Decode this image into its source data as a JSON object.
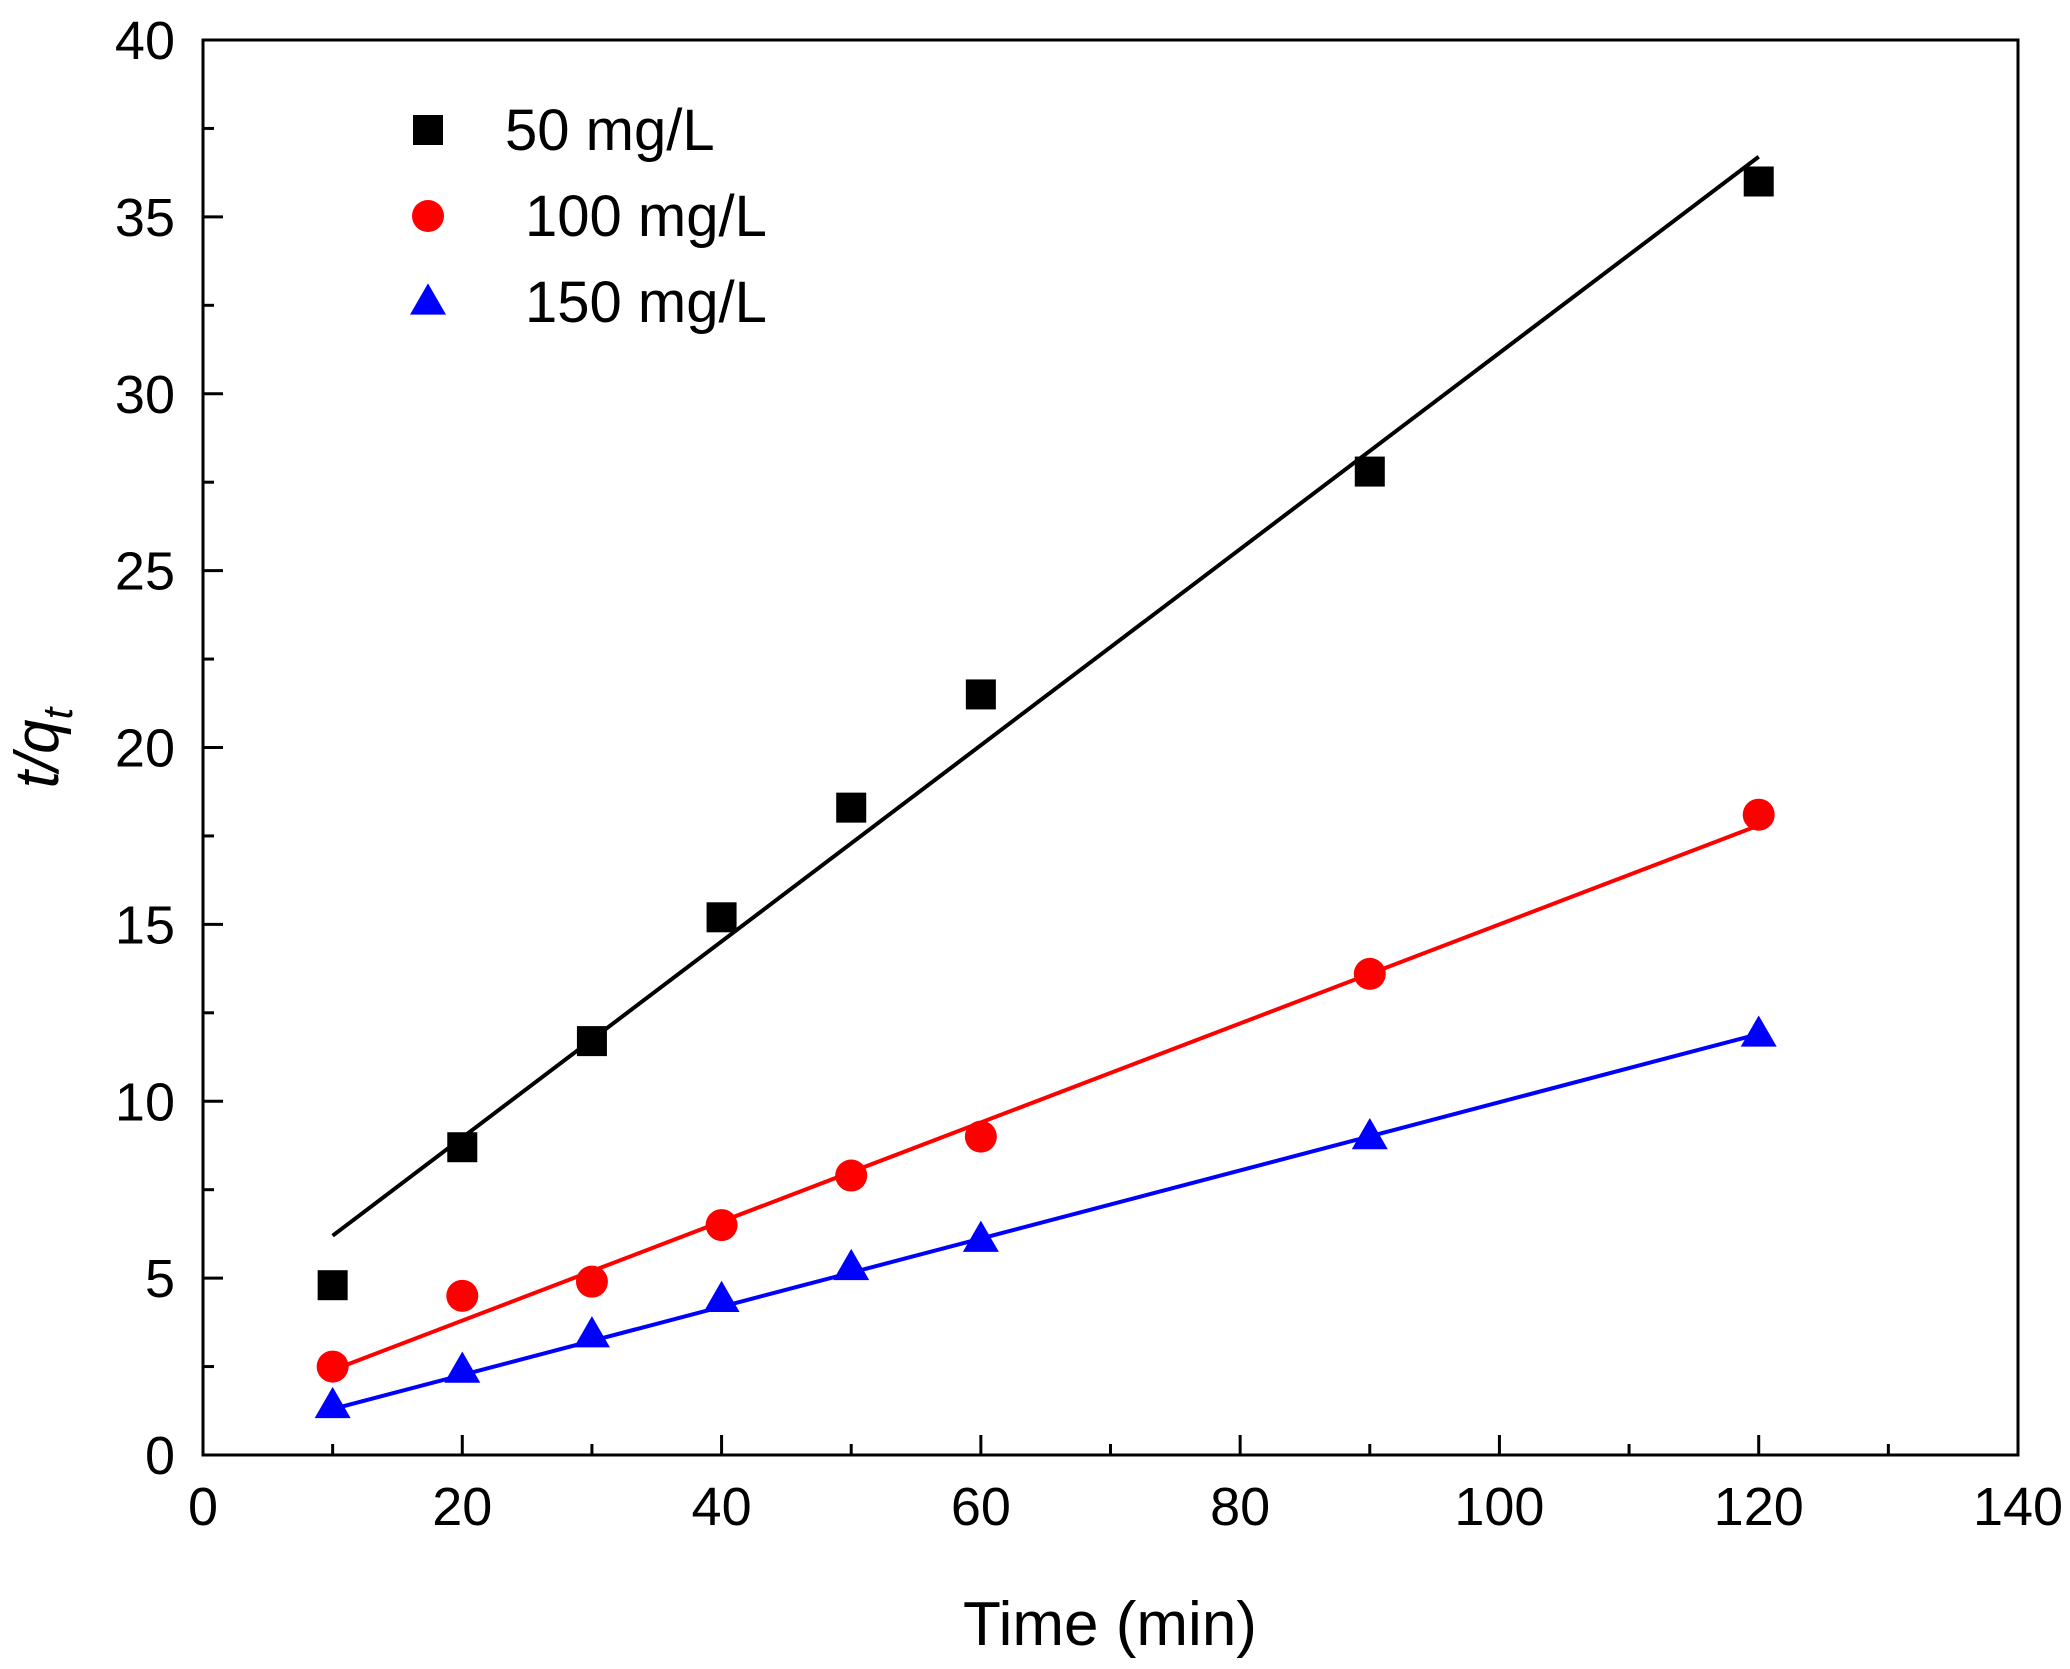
{
  "chart_data": {
    "type": "scatter",
    "title": "",
    "xlabel": "Time (min)",
    "ylabel": {
      "main": "t/q",
      "sub": "t"
    },
    "xlim": [
      0,
      140
    ],
    "ylim": [
      0,
      40
    ],
    "x_ticks": [
      0,
      20,
      40,
      60,
      80,
      100,
      120,
      140
    ],
    "y_ticks": [
      0,
      5,
      10,
      15,
      20,
      25,
      30,
      35,
      40
    ],
    "grid": false,
    "legend_position": "top-left",
    "series": [
      {
        "name": "50 mg/L",
        "marker": "square",
        "color": "#000000",
        "x": [
          10,
          20,
          30,
          40,
          50,
          60,
          90,
          120
        ],
        "y": [
          4.8,
          8.7,
          11.7,
          15.2,
          18.3,
          21.5,
          27.8,
          36.0
        ],
        "fit": {
          "x": [
            10,
            120
          ],
          "y": [
            6.2,
            36.7
          ]
        }
      },
      {
        "name": "100 mg/L",
        "marker": "circle",
        "color": "#ff0000",
        "x": [
          10,
          20,
          30,
          40,
          50,
          60,
          90,
          120
        ],
        "y": [
          2.5,
          4.5,
          4.9,
          6.5,
          7.9,
          9.0,
          13.6,
          18.1
        ],
        "fit": {
          "x": [
            10,
            120
          ],
          "y": [
            2.4,
            17.8
          ]
        }
      },
      {
        "name": "150 mg/L",
        "marker": "triangle",
        "color": "#0000ff",
        "x": [
          10,
          20,
          30,
          40,
          50,
          60,
          90,
          120
        ],
        "y": [
          1.4,
          2.4,
          3.4,
          4.4,
          5.3,
          6.1,
          9.0,
          11.9
        ],
        "fit": {
          "x": [
            10,
            120
          ],
          "y": [
            1.3,
            11.9
          ]
        }
      }
    ]
  }
}
